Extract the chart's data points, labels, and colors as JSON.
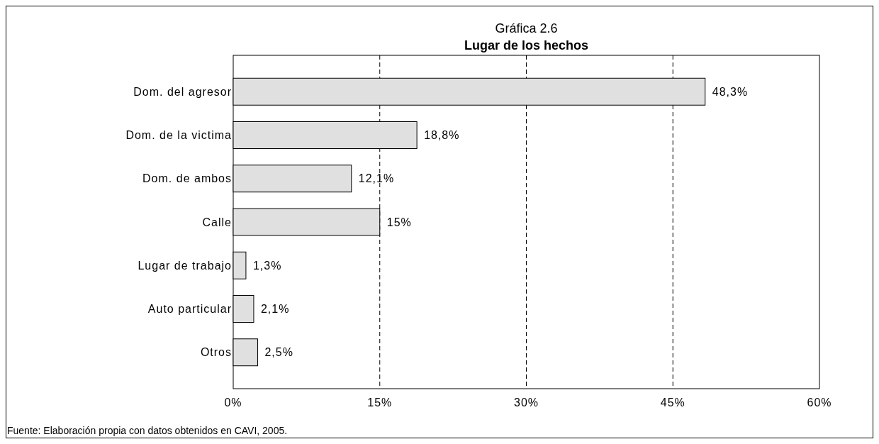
{
  "chart_data": {
    "type": "bar",
    "orientation": "horizontal",
    "subtitle": "Gráfica 2.6",
    "title": "Lugar de los hechos",
    "categories": [
      "Dom. del agresor",
      "Dom. de la victima",
      "Dom. de ambos",
      "Calle",
      "Lugar de trabajo",
      "Auto particular",
      "Otros"
    ],
    "values": [
      48.3,
      18.8,
      12.1,
      15,
      1.3,
      2.1,
      2.5
    ],
    "value_labels": [
      "48,3%",
      "18,8%",
      "12,1%",
      "15%",
      "1,3%",
      "2,1%",
      "2,5%"
    ],
    "color": "#e0e0e0",
    "xlim": [
      0,
      60
    ],
    "xticks": [
      {
        "value": 0,
        "label": "0%"
      },
      {
        "value": 15,
        "label": "15%"
      },
      {
        "value": 30,
        "label": "30%"
      },
      {
        "value": 45,
        "label": "45%"
      },
      {
        "value": 60,
        "label": "60%"
      }
    ],
    "grid": "x",
    "annotations": [
      "Fuente: Elaboración propia con datos obtenidos en CAVI, 2005."
    ]
  }
}
